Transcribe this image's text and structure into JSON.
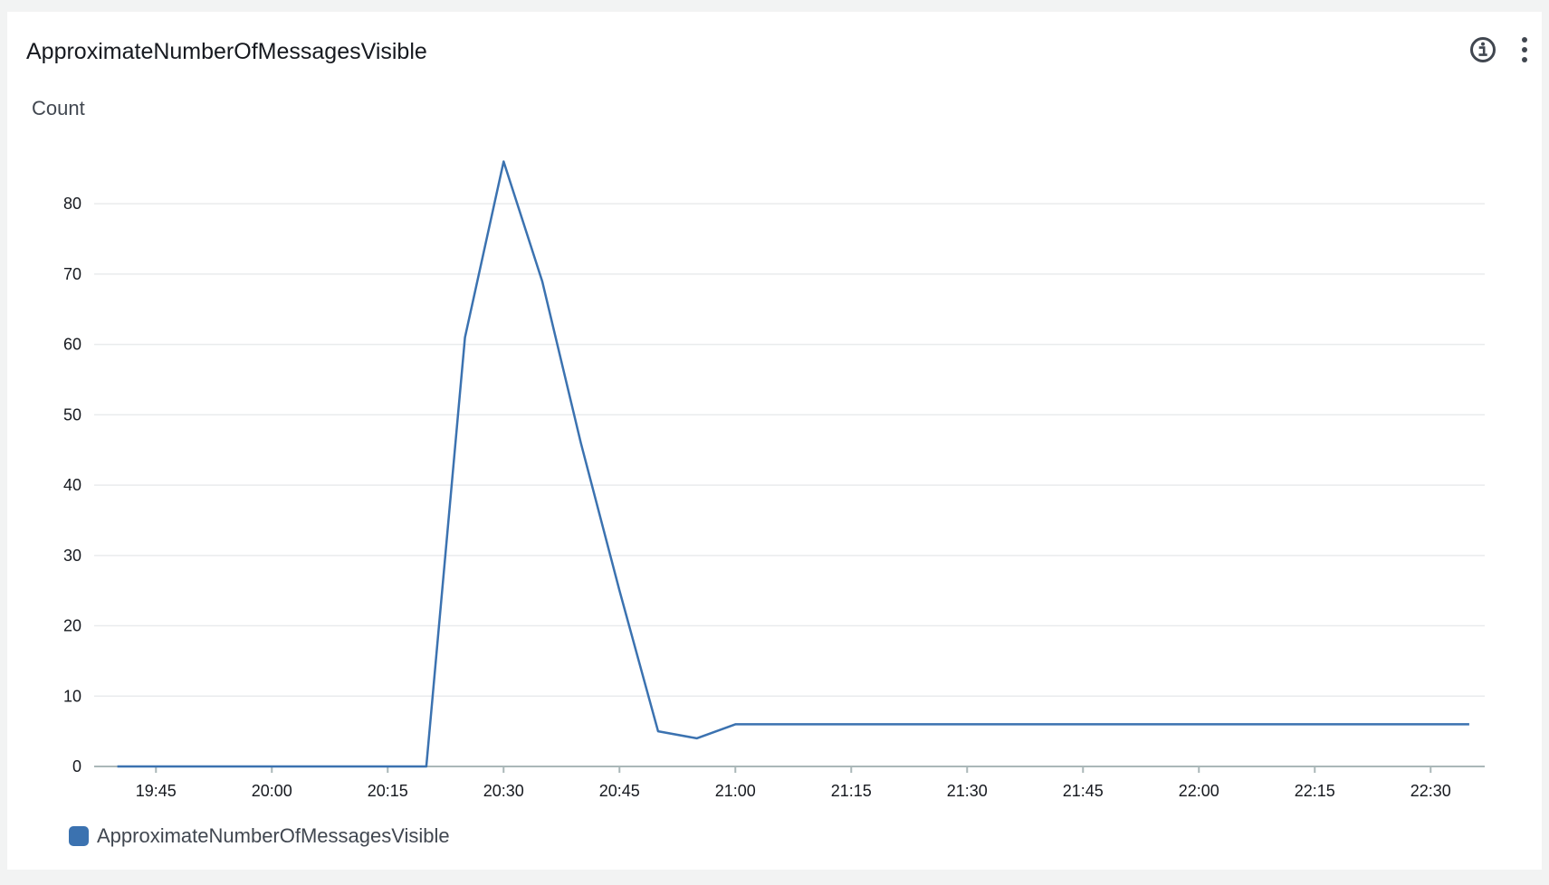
{
  "widget": {
    "title": "ApproximateNumberOfMessagesVisible",
    "info_icon": "info-circle-icon",
    "menu_icon": "vertical-ellipsis-icon"
  },
  "colors": {
    "series": "#3b72b0",
    "grid": "#e9ebed",
    "axis": "#aab7b8"
  },
  "chart_data": {
    "type": "line",
    "ylabel": "Count",
    "xlabel": "",
    "ylim": [
      0,
      88
    ],
    "y_ticks": [
      0,
      10,
      20,
      30,
      40,
      50,
      60,
      70,
      80
    ],
    "x_range": [
      "19:37",
      "22:37"
    ],
    "x_ticks": [
      "19:45",
      "20:00",
      "20:15",
      "20:30",
      "20:45",
      "21:00",
      "21:15",
      "21:30",
      "21:45",
      "22:00",
      "22:15",
      "22:30"
    ],
    "grid": true,
    "legend_position": "bottom-left",
    "series": [
      {
        "name": "ApproximateNumberOfMessagesVisible",
        "points": [
          [
            "19:40",
            0
          ],
          [
            "20:00",
            0
          ],
          [
            "20:15",
            0
          ],
          [
            "20:20",
            0
          ],
          [
            "20:25",
            61
          ],
          [
            "20:30",
            86
          ],
          [
            "20:35",
            69
          ],
          [
            "20:40",
            46
          ],
          [
            "20:45",
            25
          ],
          [
            "20:50",
            5
          ],
          [
            "20:55",
            4
          ],
          [
            "21:00",
            6
          ],
          [
            "21:30",
            6
          ],
          [
            "22:00",
            6
          ],
          [
            "22:30",
            6
          ],
          [
            "22:35",
            6
          ]
        ]
      }
    ]
  }
}
